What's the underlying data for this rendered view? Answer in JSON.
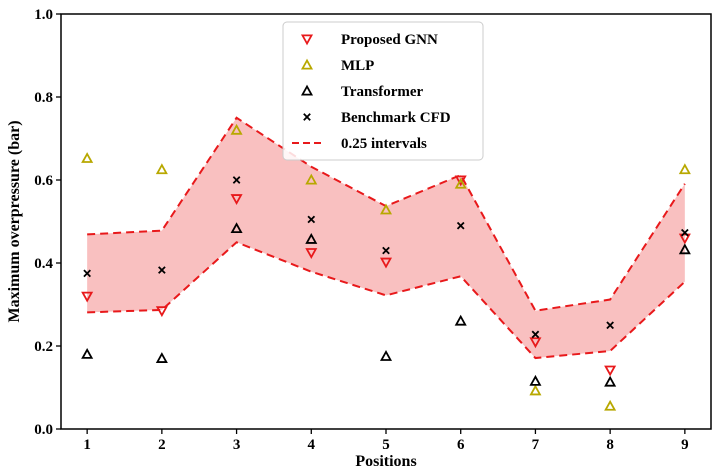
{
  "chart_data": {
    "type": "scatter",
    "xlabel": "Positions",
    "ylabel": "Maximum overpressure (bar)",
    "xlim": [
      0.65,
      9.35
    ],
    "ylim": [
      0.0,
      1.0
    ],
    "x": [
      1,
      2,
      3,
      4,
      5,
      6,
      7,
      8,
      9
    ],
    "xticks": [
      "1",
      "2",
      "3",
      "4",
      "5",
      "6",
      "7",
      "8",
      "9"
    ],
    "yticks": [
      "0.0",
      "0.2",
      "0.4",
      "0.6",
      "0.8",
      "1.0"
    ],
    "legend_position": "top-center",
    "series": [
      {
        "name": "Proposed GNN",
        "marker": "triangle-down",
        "color": "#e8191b",
        "values": [
          0.32,
          0.285,
          0.555,
          0.425,
          0.402,
          0.6,
          0.21,
          0.142,
          0.46
        ]
      },
      {
        "name": "MLP",
        "marker": "triangle-up",
        "color": "#b8a800",
        "values": [
          0.652,
          0.625,
          0.72,
          0.6,
          0.528,
          0.59,
          0.092,
          0.055,
          0.625
        ]
      },
      {
        "name": "Transformer",
        "marker": "triangle-up",
        "color": "#000000",
        "values": [
          0.18,
          0.17,
          0.483,
          0.457,
          0.175,
          0.26,
          0.115,
          0.113,
          0.432
        ]
      },
      {
        "name": "Benchmark CFD",
        "marker": "x",
        "color": "#000000",
        "values": [
          0.375,
          0.383,
          0.6,
          0.505,
          0.43,
          0.49,
          0.228,
          0.25,
          0.473
        ]
      }
    ],
    "interval": {
      "name": "0.25 intervals",
      "color": "#e8191b",
      "fill": "#f9c0c0",
      "upper": [
        0.469,
        0.478,
        0.75,
        0.632,
        0.537,
        0.612,
        0.285,
        0.312,
        0.591
      ],
      "lower": [
        0.281,
        0.287,
        0.45,
        0.379,
        0.322,
        0.368,
        0.171,
        0.188,
        0.355
      ]
    }
  }
}
